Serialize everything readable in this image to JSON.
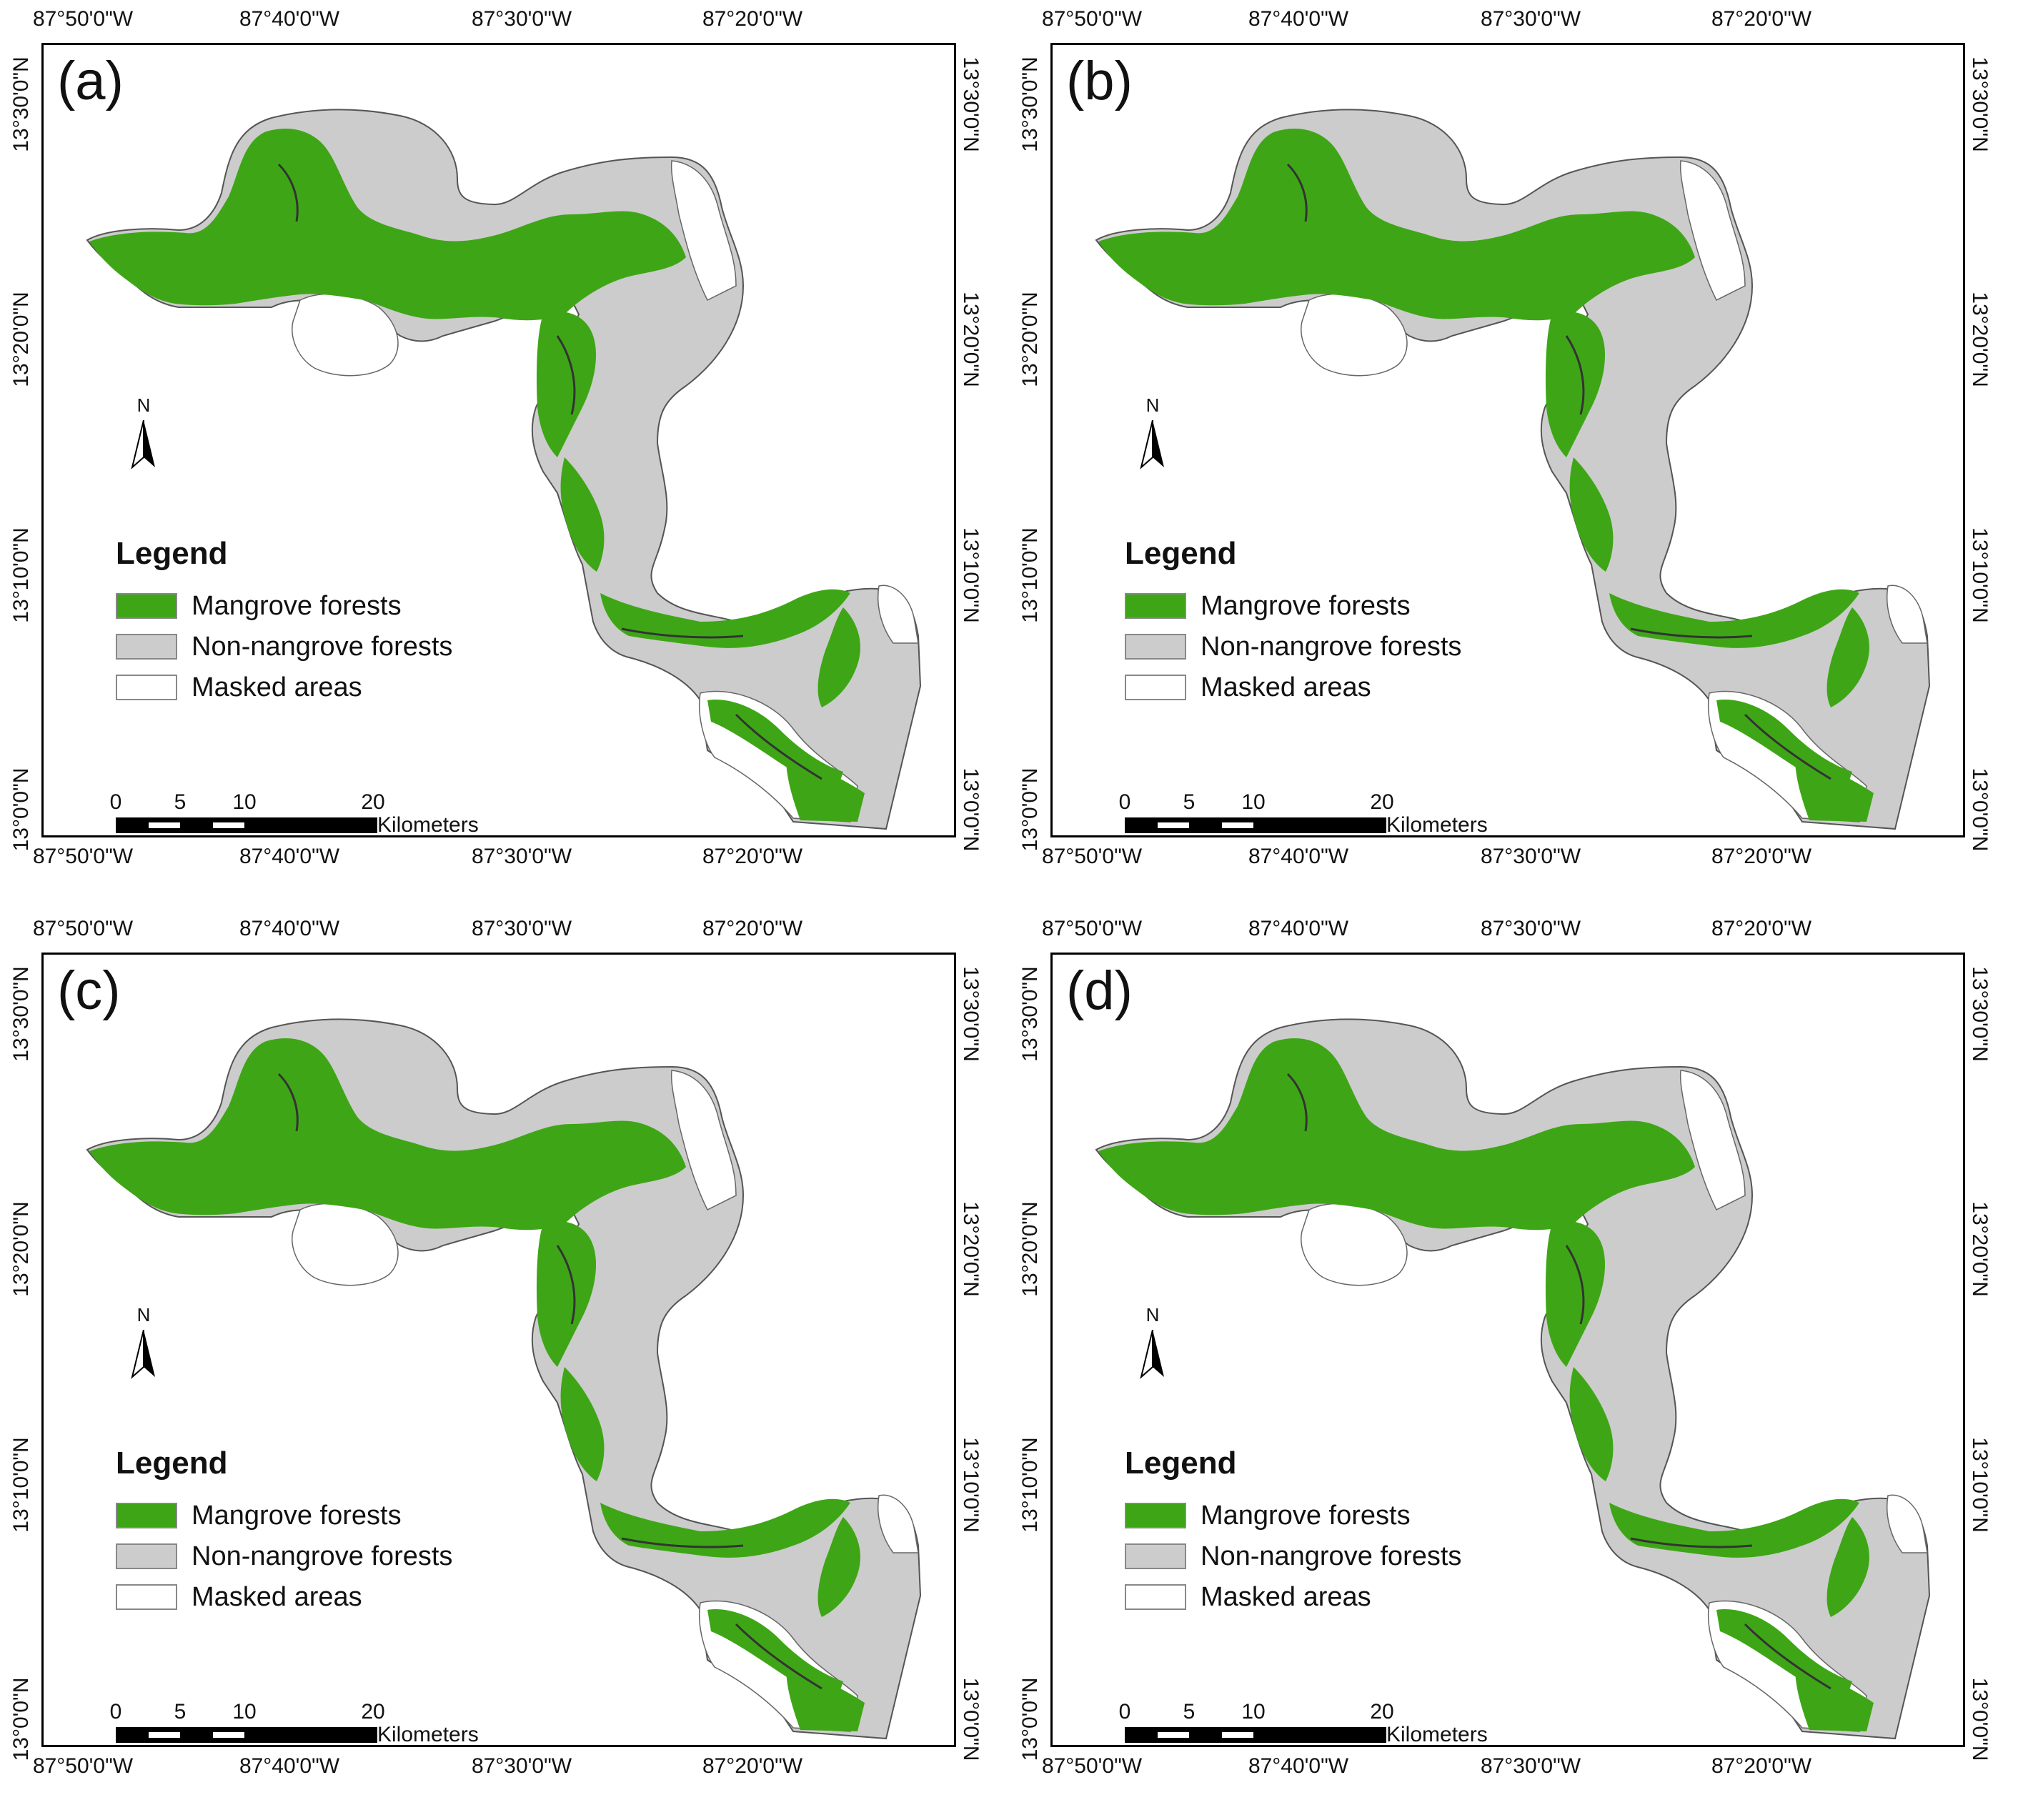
{
  "axes": {
    "lon_ticks": [
      "87°50'0\"W",
      "87°40'0\"W",
      "87°30'0\"W",
      "87°20'0\"W"
    ],
    "lat_ticks": [
      "13°30'0\"N",
      "13°20'0\"N",
      "13°10'0\"N",
      "13°0'0\"N"
    ]
  },
  "panels": [
    {
      "label": "(a)"
    },
    {
      "label": "(b)"
    },
    {
      "label": "(c)"
    },
    {
      "label": "(d)"
    }
  ],
  "legend": {
    "title": "Legend",
    "items": [
      {
        "label": "Mangrove forests",
        "color": "#3ea616"
      },
      {
        "label": "Non-nangrove forests",
        "color": "#cccccc"
      },
      {
        "label": "Masked areas",
        "color": "#ffffff"
      }
    ]
  },
  "north_arrow": {
    "label": "N"
  },
  "scale_bar": {
    "ticks": [
      "0",
      "5",
      "10",
      "20"
    ],
    "unit": "Kilometers"
  },
  "colors": {
    "mangrove": "#3ea616",
    "non_mangrove": "#cccccc",
    "masked": "#ffffff",
    "outline": "#555555"
  }
}
